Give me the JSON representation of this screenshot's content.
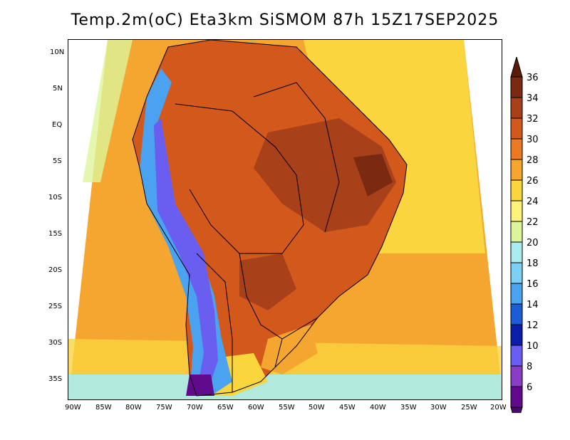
{
  "title": "Temp.2m(oC) Eta3km SiSMOM 87h 15Z17SEP2025",
  "lat_ticks": [
    "10N",
    "5N",
    "EQ",
    "5S",
    "10S",
    "15S",
    "20S",
    "25S",
    "30S",
    "35S"
  ],
  "lon_ticks": [
    "90W",
    "85W",
    "80W",
    "75W",
    "70W",
    "65W",
    "60W",
    "55W",
    "50W",
    "45W",
    "40W",
    "35W",
    "30W",
    "25W",
    "20W"
  ],
  "legend": {
    "labels": [
      "36",
      "34",
      "32",
      "30",
      "28",
      "26",
      "24",
      "22",
      "20",
      "18",
      "16",
      "14",
      "12",
      "10",
      "8",
      "6"
    ],
    "colors": [
      "#7a2a10",
      "#a8401a",
      "#d2581c",
      "#ec7a22",
      "#f5a631",
      "#fad53e",
      "#fff27a",
      "#dcf59a",
      "#a9edf0",
      "#7dcff5",
      "#4aa2f0",
      "#1c5cd8",
      "#0a1fa8",
      "#6a5ef0",
      "#8b3cc4",
      "#620a8c"
    ],
    "top_arrow_color": "#5a1a08",
    "bottom_arrow_color": "#4a0a6c"
  }
}
